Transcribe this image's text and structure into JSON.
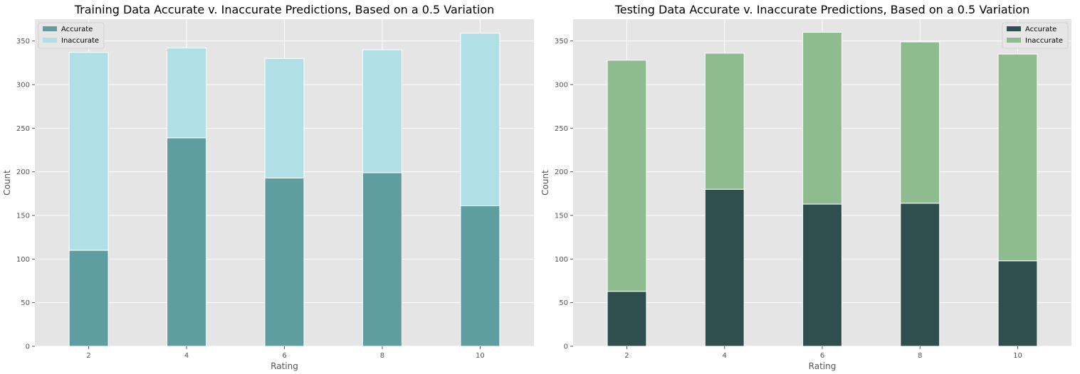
{
  "chart_data": [
    {
      "type": "bar",
      "stacked": true,
      "title": "Training Data Accurate v. Inaccurate Predictions, Based on a 0.5 Variation",
      "xlabel": "Rating",
      "ylabel": "Count",
      "categories": [
        2,
        4,
        6,
        8,
        10
      ],
      "xlim": [
        0.9,
        11.1
      ],
      "ylim": [
        0,
        375
      ],
      "yticks": [
        0,
        50,
        100,
        150,
        200,
        250,
        300,
        350
      ],
      "grid": true,
      "legend_position": "top-left",
      "series": [
        {
          "name": "Accurate",
          "values": [
            110,
            239,
            193,
            199,
            161
          ],
          "color": "#5f9ea0"
        },
        {
          "name": "Inaccurate",
          "values": [
            227,
            103,
            137,
            141,
            198
          ],
          "color": "#b0e0e6"
        }
      ]
    },
    {
      "type": "bar",
      "stacked": true,
      "title": "Testing Data Accurate v. Inaccurate Predictions, Based on a 0.5 Variation",
      "xlabel": "Rating",
      "ylabel": "Count",
      "categories": [
        2,
        4,
        6,
        8,
        10
      ],
      "xlim": [
        0.9,
        11.1
      ],
      "ylim": [
        0,
        375
      ],
      "yticks": [
        0,
        50,
        100,
        150,
        200,
        250,
        300,
        350
      ],
      "grid": true,
      "legend_position": "top-right",
      "series": [
        {
          "name": "Accurate",
          "values": [
            63,
            180,
            163,
            164,
            98
          ],
          "color": "#2f4f4f"
        },
        {
          "name": "Inaccurate",
          "values": [
            265,
            156,
            197,
            185,
            237
          ],
          "color": "#8fbc8f"
        }
      ]
    }
  ]
}
